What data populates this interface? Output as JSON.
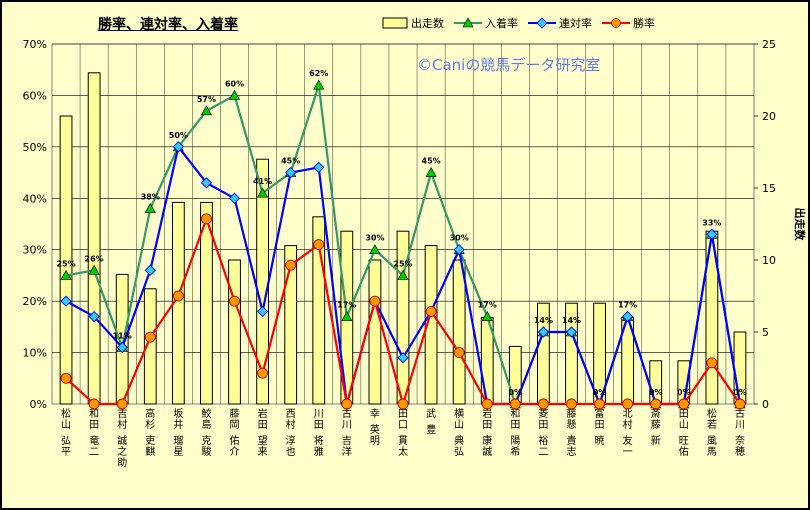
{
  "chart_data": {
    "type": "bar",
    "title": "勝率、連対率、入着率",
    "watermark": "©Caniの競馬データ研究室",
    "y_left_ticks": [
      "0%",
      "10%",
      "20%",
      "30%",
      "40%",
      "50%",
      "60%",
      "70%"
    ],
    "y_right_ticks": [
      "0",
      "5",
      "10",
      "15",
      "20",
      "25"
    ],
    "y_left_lim": [
      0,
      70
    ],
    "y_right_lim": [
      0,
      25
    ],
    "y_right_label": "出走数",
    "legend_position": "top-right",
    "categories": [
      "松山 弘平",
      "和田 竜二",
      "吉村 誠之助",
      "高杉 吏麒",
      "坂井 瑠星",
      "鮫島 克駿",
      "藤岡 佑介",
      "岩田 望来",
      "西村 淳也",
      "川田 将雅",
      "古川 吉洋",
      "幸 英明",
      "田口 貫太",
      "武 豊",
      "横山 典弘",
      "岩田 康誠",
      "和田 陽希",
      "菱田 裕二",
      "藤懸 貴志",
      "富田 暁",
      "北村 友一",
      "斎藤 新",
      "田山 旺佑",
      "松若 風馬",
      "古川 奈穂"
    ],
    "series": [
      {
        "name": "出走数",
        "type": "bar",
        "axis": "right",
        "color": "#ffff99",
        "values": [
          20,
          23,
          9,
          8,
          14,
          14,
          10,
          17,
          11,
          13,
          12,
          10,
          12,
          11,
          10,
          6,
          4,
          7,
          7,
          7,
          6,
          3,
          3,
          12,
          5
        ]
      },
      {
        "name": "入着率",
        "type": "line",
        "axis": "left",
        "color": "#339966",
        "marker_color": "#00cc00",
        "labels": [
          "25%",
          "26%",
          "11%",
          "38%",
          "50%",
          "57%",
          "60%",
          "41%",
          "45%",
          "62%",
          "17%",
          "30%",
          "25%",
          "45%",
          "30%",
          "17%",
          "0%",
          "14%",
          "14%",
          "0%",
          "17%",
          "0%",
          "0%",
          "33%",
          "0%"
        ],
        "values": [
          25,
          26,
          11,
          38,
          50,
          57,
          60,
          41,
          45,
          62,
          17,
          30,
          25,
          45,
          30,
          17,
          0,
          14,
          14,
          0,
          17,
          0,
          0,
          33,
          0
        ]
      },
      {
        "name": "連対率",
        "type": "line",
        "axis": "left",
        "color": "#0000ff",
        "marker_color": "#33ccff",
        "values": [
          20,
          17,
          11,
          26,
          50,
          43,
          40,
          18,
          45,
          46,
          0,
          20,
          9,
          18,
          30,
          0,
          0,
          14,
          14,
          0,
          17,
          0,
          0,
          33,
          0
        ]
      },
      {
        "name": "勝率",
        "type": "line",
        "axis": "left",
        "color": "#ff0000",
        "marker_color": "#ff9900",
        "values": [
          5,
          0,
          0,
          13,
          21,
          36,
          20,
          6,
          27,
          31,
          0,
          20,
          0,
          18,
          10,
          0,
          0,
          0,
          0,
          0,
          0,
          0,
          0,
          8,
          0
        ]
      }
    ]
  }
}
